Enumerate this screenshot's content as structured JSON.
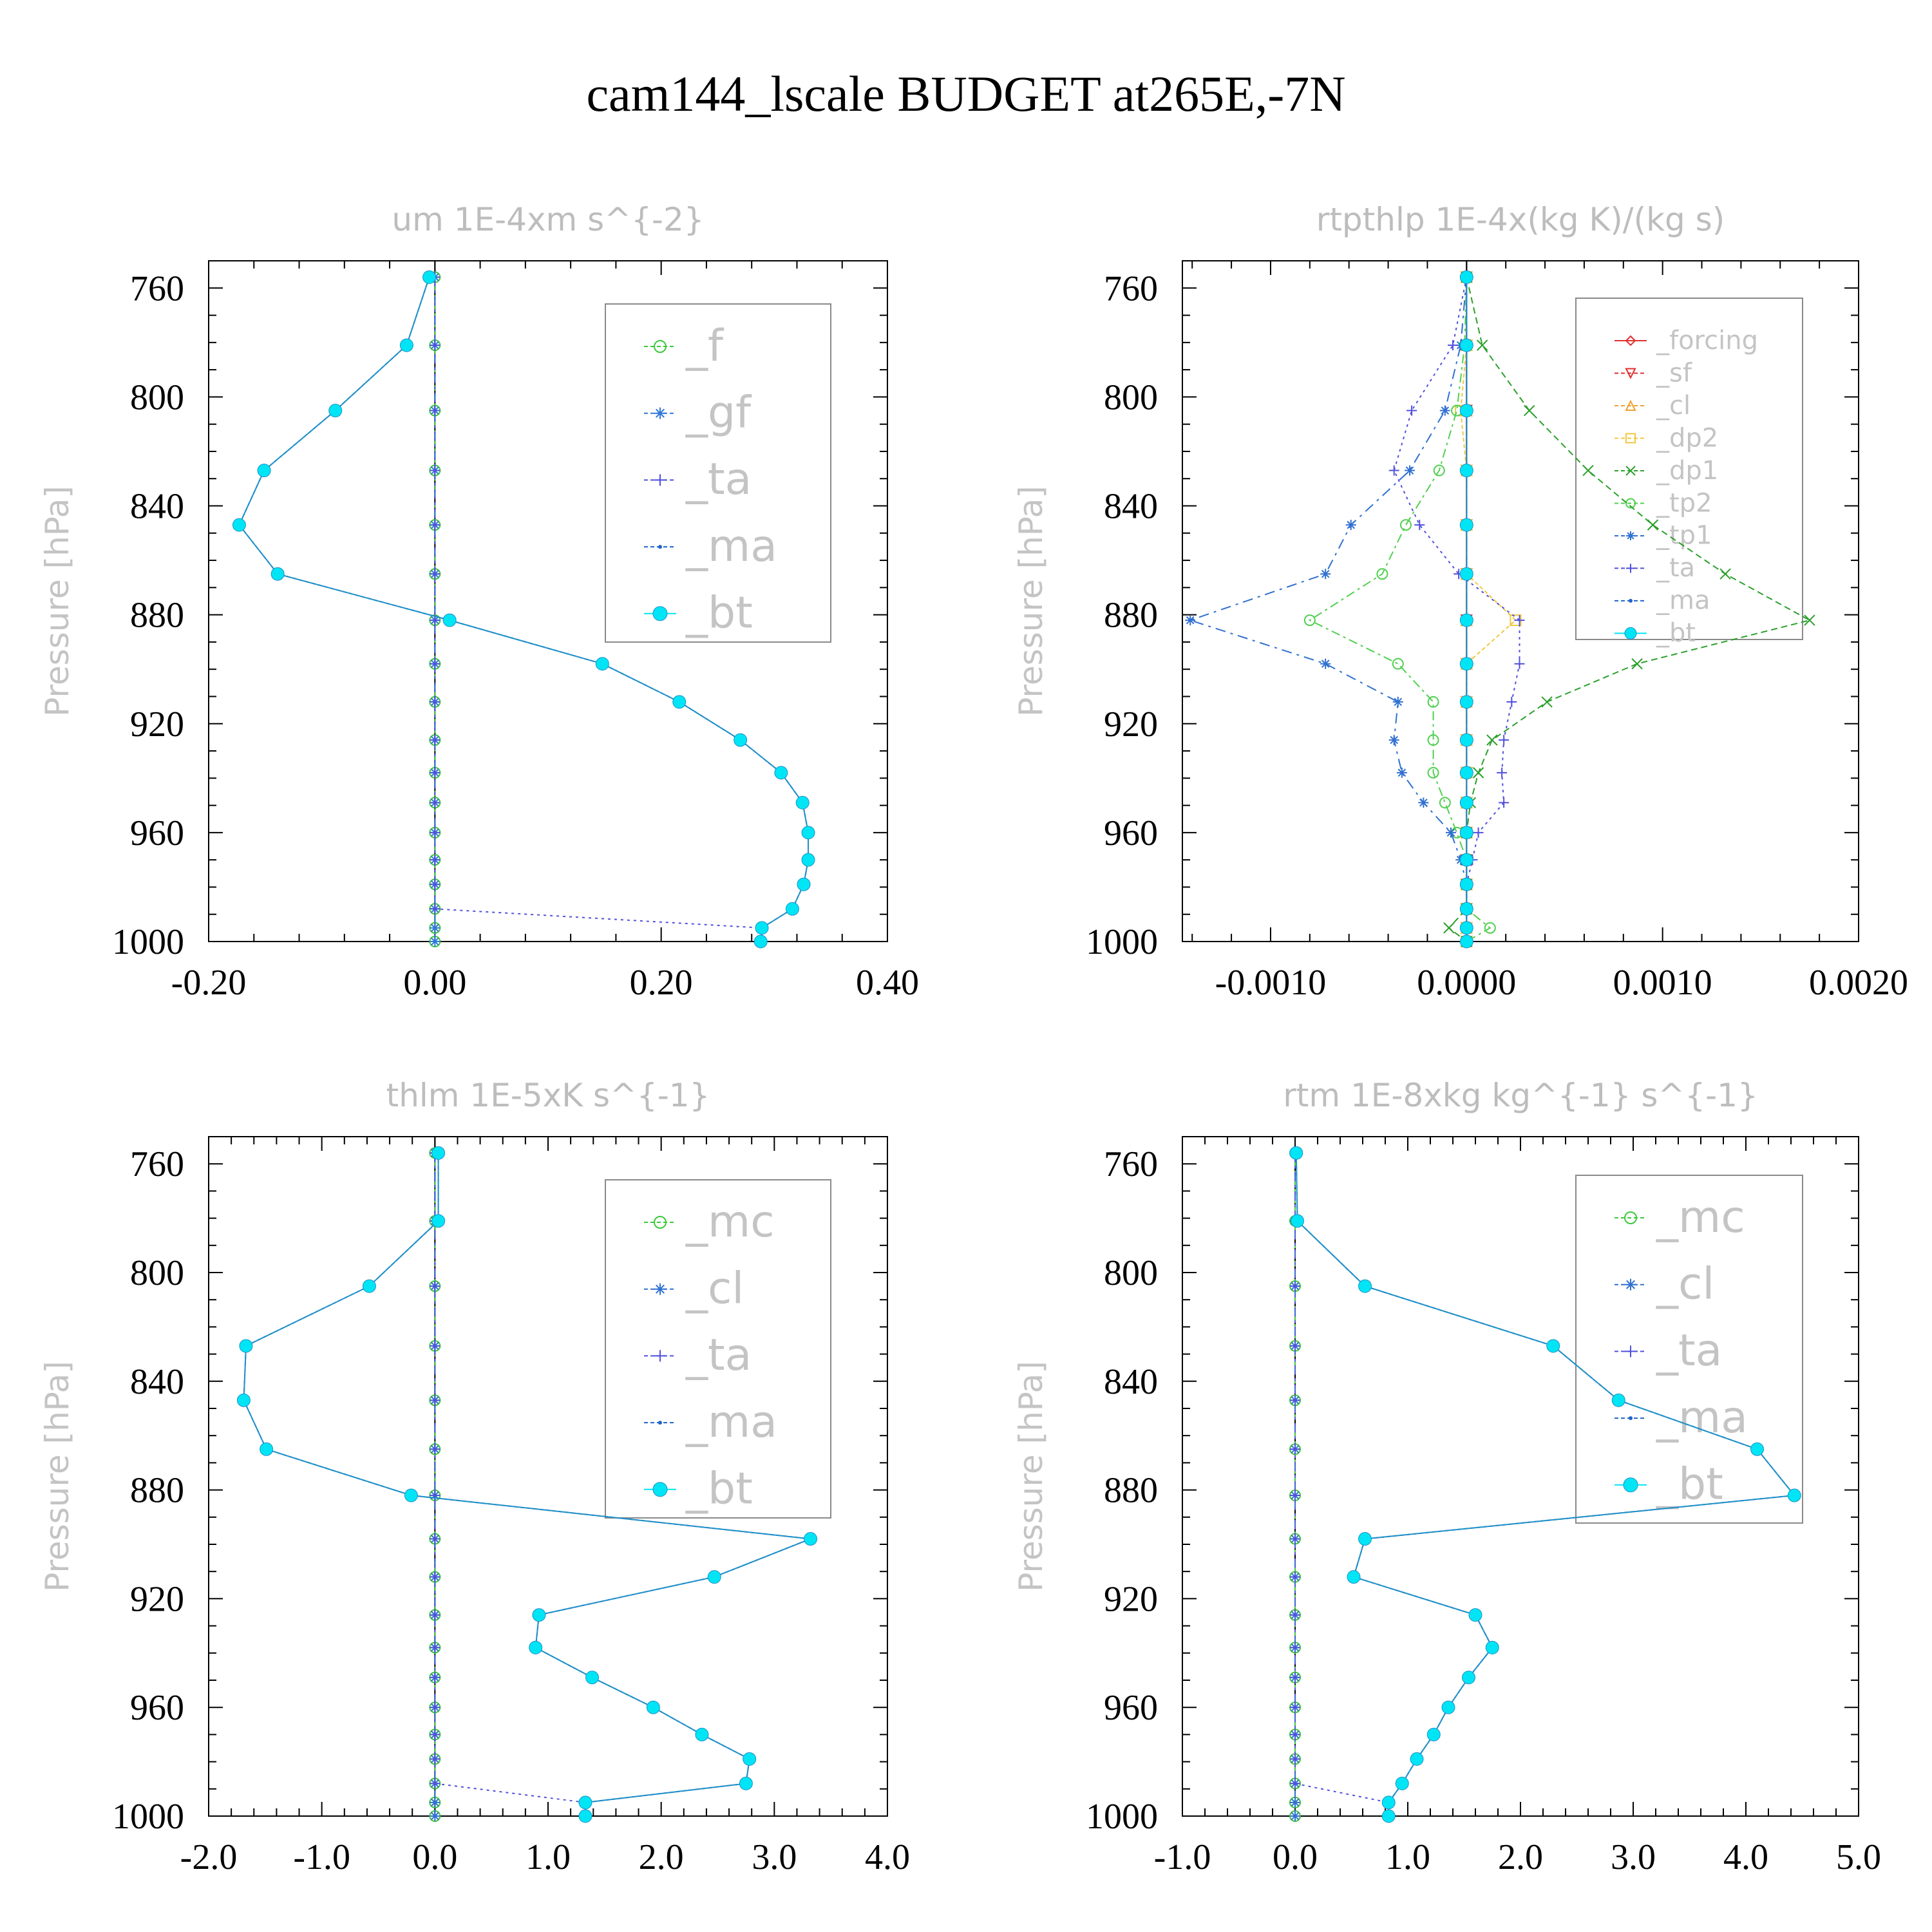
{
  "title": "cam144_lscale  BUDGET at265E,-7N",
  "colors": {
    "f": "#3cc83c",
    "gf": "#2f78d8",
    "ta": "#5050dc",
    "ma": "#1e64c8",
    "bt": "#00e5f5",
    "forcing": "#e03030",
    "sf": "#e03030",
    "cl": "#f0a030",
    "dp2": "#f0c840",
    "dp1": "#2aa02a",
    "tp2": "#50d050",
    "tp1": "#3070d0",
    "mc": "#3cc83c",
    "cl_b": "#3070d0"
  },
  "chart_data": [
    {
      "type": "line",
      "title": "um  1E-4xm s^{-2}",
      "ylabel": "Pressure [hPa]",
      "xlim": [
        -0.2,
        0.4
      ],
      "ylim": [
        1000,
        750
      ],
      "xticks": [
        "-0.20",
        "0.00",
        "0.20",
        "0.40"
      ],
      "yticks": [
        "760",
        "800",
        "840",
        "880",
        "920",
        "960",
        "1000"
      ],
      "legend_position": "top-right",
      "pressure": [
        756,
        781,
        805,
        827,
        847,
        865,
        882,
        898,
        912,
        926,
        938,
        949,
        960,
        970,
        979,
        988,
        995,
        1000
      ],
      "series": [
        {
          "name": "_f",
          "color_key": "f",
          "marker": "circle",
          "dash": "8,6",
          "values": [
            0,
            0,
            0,
            0,
            0,
            0,
            0,
            0,
            0,
            0,
            0,
            0,
            0,
            0,
            0,
            0,
            0,
            0
          ]
        },
        {
          "name": "_gf",
          "color_key": "gf",
          "marker": "star",
          "dash": "14,6,4,6",
          "values": [
            0,
            0,
            0,
            0,
            0,
            0,
            0,
            0,
            0,
            0,
            0,
            0,
            0,
            0,
            0,
            0,
            0,
            0
          ]
        },
        {
          "name": "_ta",
          "color_key": "ta",
          "marker": "plus",
          "dash": "4,6",
          "values": [
            0,
            0,
            0,
            0,
            0,
            0,
            0,
            0,
            0,
            0,
            0,
            0,
            0,
            0,
            0,
            0,
            0.289,
            0.289
          ]
        },
        {
          "name": "_ma",
          "color_key": "ma",
          "marker": "dot",
          "dash": "6,4",
          "values": [
            -0.005,
            -0.025,
            -0.088,
            -0.151,
            -0.173,
            -0.139,
            0.013,
            0.148,
            0.216,
            0.27,
            0.306,
            0.325,
            0.33,
            0.33,
            0.326,
            0.316,
            0.289,
            0.288
          ]
        },
        {
          "name": "_bt",
          "color_key": "bt",
          "marker": "disc",
          "dash": "",
          "values": [
            -0.005,
            -0.025,
            -0.088,
            -0.151,
            -0.173,
            -0.139,
            0.013,
            0.148,
            0.216,
            0.27,
            0.306,
            0.325,
            0.33,
            0.33,
            0.326,
            0.316,
            0.289,
            0.288
          ]
        }
      ]
    },
    {
      "type": "line",
      "title": "rtpthlp  1E-4x(kg K)/(kg s)",
      "ylabel": "Pressure [hPa]",
      "xlim": [
        -0.00145,
        0.002
      ],
      "ylim": [
        1000,
        750
      ],
      "xticks": [
        "-0.0010",
        "0.0000",
        "0.0010",
        "0.0020"
      ],
      "yticks": [
        "760",
        "800",
        "840",
        "880",
        "920",
        "960",
        "1000"
      ],
      "legend_position": "top-right",
      "pressure": [
        756,
        781,
        805,
        827,
        847,
        865,
        882,
        898,
        912,
        926,
        938,
        949,
        960,
        970,
        979,
        988,
        995,
        1000
      ],
      "series": [
        {
          "name": "_forcing",
          "color_key": "forcing",
          "marker": "diamond",
          "dash": "",
          "values": [
            0,
            0,
            0,
            0,
            0,
            0,
            0,
            0,
            0,
            0,
            0,
            0,
            0,
            0,
            0,
            0,
            0,
            0
          ]
        },
        {
          "name": "_sf",
          "color_key": "sf",
          "marker": "tri-down",
          "dash": "8,6",
          "values": [
            0,
            0,
            0,
            0,
            0,
            0,
            0,
            0,
            0,
            0,
            0,
            0,
            0,
            0,
            0,
            0,
            0,
            0
          ]
        },
        {
          "name": "_cl",
          "color_key": "cl",
          "marker": "tri-up",
          "dash": "14,6,4,6",
          "values": [
            0,
            0,
            0,
            0,
            0,
            0,
            0,
            0,
            0,
            0,
            0,
            0,
            0,
            0,
            0,
            0,
            0,
            0
          ]
        },
        {
          "name": "_dp2",
          "color_key": "dp2",
          "marker": "square",
          "dash": "6,4",
          "values": [
            0,
            0,
            -3e-05,
            0,
            0,
            0,
            0.00025,
            0,
            0,
            0,
            0,
            0,
            0,
            0,
            0,
            0,
            0,
            0
          ]
        },
        {
          "name": "_dp1",
          "color_key": "dp1",
          "marker": "x",
          "dash": "10,6",
          "values": [
            0,
            8e-05,
            0.00032,
            0.00062,
            0.00095,
            0.00132,
            0.00175,
            0.00087,
            0.00041,
            0.00013,
            6e-05,
            2e-05,
            0,
            0,
            0,
            0,
            -9e-05,
            0
          ]
        },
        {
          "name": "_tp2",
          "color_key": "tp2",
          "marker": "circle",
          "dash": "14,6,4,6",
          "values": [
            0,
            -1e-05,
            -5e-05,
            -0.00014,
            -0.00031,
            -0.00043,
            -0.0008,
            -0.00035,
            -0.00017,
            -0.00017,
            -0.00017,
            -0.00011,
            -5e-05,
            0,
            0,
            0,
            0.00012,
            0
          ]
        },
        {
          "name": "_tp1",
          "color_key": "tp1",
          "marker": "star",
          "dash": "16,8,4,8",
          "values": [
            0,
            -3e-05,
            -0.00011,
            -0.00029,
            -0.00059,
            -0.00072,
            -0.00141,
            -0.00072,
            -0.00035,
            -0.00037,
            -0.00033,
            -0.00022,
            -8e-05,
            -3e-05,
            0,
            0,
            0,
            0
          ]
        },
        {
          "name": "_ta",
          "color_key": "ta",
          "marker": "plus",
          "dash": "4,6",
          "values": [
            0,
            -7e-05,
            -0.00028,
            -0.00037,
            -0.00024,
            -4e-05,
            0.00027,
            0.00027,
            0.00023,
            0.00019,
            0.00018,
            0.00019,
            6e-05,
            3e-05,
            0,
            0,
            0,
            0
          ]
        },
        {
          "name": "_ma",
          "color_key": "ma",
          "marker": "dot",
          "dash": "6,4",
          "values": [
            0,
            0,
            0,
            0,
            0,
            0,
            0,
            0,
            0,
            0,
            0,
            0,
            0,
            0,
            0,
            0,
            0,
            0
          ]
        },
        {
          "name": "_bt",
          "color_key": "bt",
          "marker": "disc",
          "dash": "",
          "values": [
            0,
            0,
            0,
            0,
            0,
            0,
            0,
            0,
            0,
            0,
            0,
            0,
            0,
            0,
            0,
            0,
            0,
            0
          ]
        }
      ]
    },
    {
      "type": "line",
      "title": "thlm  1E-5xK s^{-1}",
      "ylabel": "Pressure [hPa]",
      "xlim": [
        -2.0,
        4.0
      ],
      "ylim": [
        1000,
        750
      ],
      "xticks": [
        "-2.0",
        "-1.0",
        "0.0",
        "1.0",
        "2.0",
        "3.0",
        "4.0"
      ],
      "yticks": [
        "760",
        "800",
        "840",
        "880",
        "920",
        "960",
        "1000"
      ],
      "legend_position": "top-right",
      "pressure": [
        756,
        781,
        805,
        827,
        847,
        865,
        882,
        898,
        912,
        926,
        938,
        949,
        960,
        970,
        979,
        988,
        995,
        1000
      ],
      "series": [
        {
          "name": "_mc",
          "color_key": "mc",
          "marker": "circle",
          "dash": "8,6",
          "values": [
            0,
            0,
            0,
            0,
            0,
            0,
            0,
            0,
            0,
            0,
            0,
            0,
            0,
            0,
            0,
            0,
            0,
            0
          ]
        },
        {
          "name": "_cl",
          "color_key": "cl_b",
          "marker": "star",
          "dash": "14,6,4,6",
          "values": [
            0,
            0,
            0,
            0,
            0,
            0,
            0,
            0,
            0,
            0,
            0,
            0,
            0,
            0,
            0,
            0,
            0,
            0
          ]
        },
        {
          "name": "_ta",
          "color_key": "ta",
          "marker": "plus",
          "dash": "4,6",
          "values": [
            0,
            0,
            0,
            0,
            0,
            0,
            0,
            0,
            0,
            0,
            0,
            0,
            0,
            0,
            0,
            0,
            1.33,
            1.33
          ]
        },
        {
          "name": "_ma",
          "color_key": "ma",
          "marker": "dot",
          "dash": "6,4",
          "values": [
            0.03,
            0.03,
            -0.58,
            -1.67,
            -1.69,
            -1.49,
            -0.21,
            3.32,
            2.47,
            0.92,
            0.89,
            1.39,
            1.93,
            2.36,
            2.78,
            2.75,
            1.33,
            1.33
          ]
        },
        {
          "name": "_bt",
          "color_key": "bt",
          "marker": "disc",
          "dash": "",
          "values": [
            0.03,
            0.03,
            -0.58,
            -1.67,
            -1.69,
            -1.49,
            -0.21,
            3.32,
            2.47,
            0.92,
            0.89,
            1.39,
            1.93,
            2.36,
            2.78,
            2.75,
            1.33,
            1.33
          ]
        }
      ]
    },
    {
      "type": "line",
      "title": "rtm  1E-8xkg kg^{-1} s^{-1}",
      "ylabel": "Pressure [hPa]",
      "xlim": [
        -1.0,
        5.0
      ],
      "ylim": [
        1000,
        750
      ],
      "xticks": [
        "-1.0",
        "0.0",
        "1.0",
        "2.0",
        "3.0",
        "4.0",
        "5.0"
      ],
      "yticks": [
        "760",
        "800",
        "840",
        "880",
        "920",
        "960",
        "1000"
      ],
      "legend_position": "top-right",
      "pressure": [
        756,
        781,
        805,
        827,
        847,
        865,
        882,
        898,
        912,
        926,
        938,
        949,
        960,
        970,
        979,
        988,
        995,
        1000
      ],
      "series": [
        {
          "name": "_mc",
          "color_key": "mc",
          "marker": "circle",
          "dash": "8,6",
          "values": [
            0,
            0,
            0,
            0,
            0,
            0,
            0,
            0,
            0,
            0,
            0,
            0,
            0,
            0,
            0,
            0,
            0,
            0
          ]
        },
        {
          "name": "_cl",
          "color_key": "cl_b",
          "marker": "star",
          "dash": "14,6,4,6",
          "values": [
            0,
            0,
            0,
            0,
            0,
            0,
            0,
            0,
            0,
            0,
            0,
            0,
            0,
            0,
            0,
            0,
            0,
            0
          ]
        },
        {
          "name": "_ta",
          "color_key": "ta",
          "marker": "plus",
          "dash": "4,6",
          "values": [
            0,
            0,
            0,
            0,
            0,
            0,
            0,
            0,
            0,
            0,
            0,
            0,
            0,
            0,
            0,
            0,
            0.83,
            0.83
          ]
        },
        {
          "name": "_ma",
          "color_key": "ma",
          "marker": "dot",
          "dash": "6,4",
          "values": [
            0.01,
            0.02,
            0.62,
            2.29,
            2.87,
            4.1,
            4.43,
            0.62,
            0.52,
            1.6,
            1.75,
            1.54,
            1.36,
            1.23,
            1.08,
            0.95,
            0.83,
            0.83
          ]
        },
        {
          "name": "_bt",
          "color_key": "bt",
          "marker": "disc",
          "dash": "",
          "values": [
            0.01,
            0.02,
            0.62,
            2.29,
            2.87,
            4.1,
            4.43,
            0.62,
            0.52,
            1.6,
            1.75,
            1.54,
            1.36,
            1.23,
            1.08,
            0.95,
            0.83,
            0.83
          ]
        }
      ]
    }
  ]
}
